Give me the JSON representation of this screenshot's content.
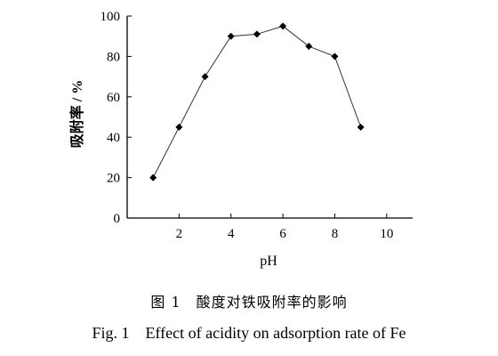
{
  "chart_data": {
    "type": "line",
    "x": [
      1,
      2,
      3,
      4,
      5,
      6,
      7,
      8,
      9
    ],
    "series": [
      {
        "values": [
          20,
          45,
          70,
          90,
          91,
          95,
          85,
          80,
          45
        ]
      }
    ],
    "xlabel": "pH",
    "ylabel": "吸附率 / %",
    "xlim": [
      0,
      11
    ],
    "ylim": [
      0,
      100
    ],
    "xticks": [
      2,
      4,
      6,
      8,
      10
    ],
    "yticks": [
      0,
      20,
      40,
      60,
      80,
      100
    ],
    "marker": "diamond",
    "grid": false,
    "line_color": "#333333"
  },
  "caption": {
    "cn": "图 1　酸度对铁吸附率的影响",
    "en": "Fig. 1　Effect of acidity on adsorption rate of Fe"
  }
}
